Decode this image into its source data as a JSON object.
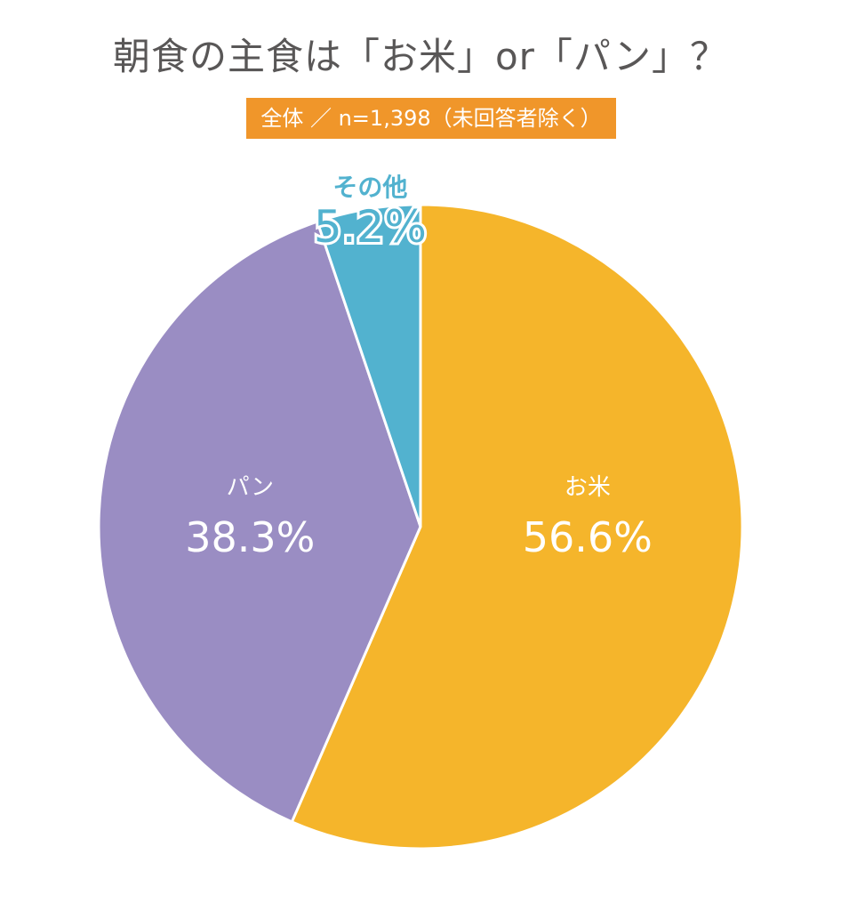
{
  "chart_data": {
    "type": "pie",
    "title": "朝食の主食は「お米」or「パン」？",
    "subtitle": "全体 ／ n=1,398（未回答者除く）",
    "slices": [
      {
        "label": "お米",
        "value": 56.6,
        "display": "56.6%",
        "color": "#f5b52b",
        "label_position": "inside"
      },
      {
        "label": "パン",
        "value": 38.3,
        "display": "38.3%",
        "color": "#9a8dc3",
        "label_position": "inside"
      },
      {
        "label": "その他",
        "value": 5.2,
        "display": "5.2%",
        "color": "#52b2cf",
        "label_position": "outside"
      }
    ],
    "start": "12 o'clock",
    "direction": "clockwise",
    "legend": "none"
  },
  "colors": {
    "title_text": "#595757",
    "subtitle_background": "#f0962a",
    "slice_border": "#ffffff"
  }
}
